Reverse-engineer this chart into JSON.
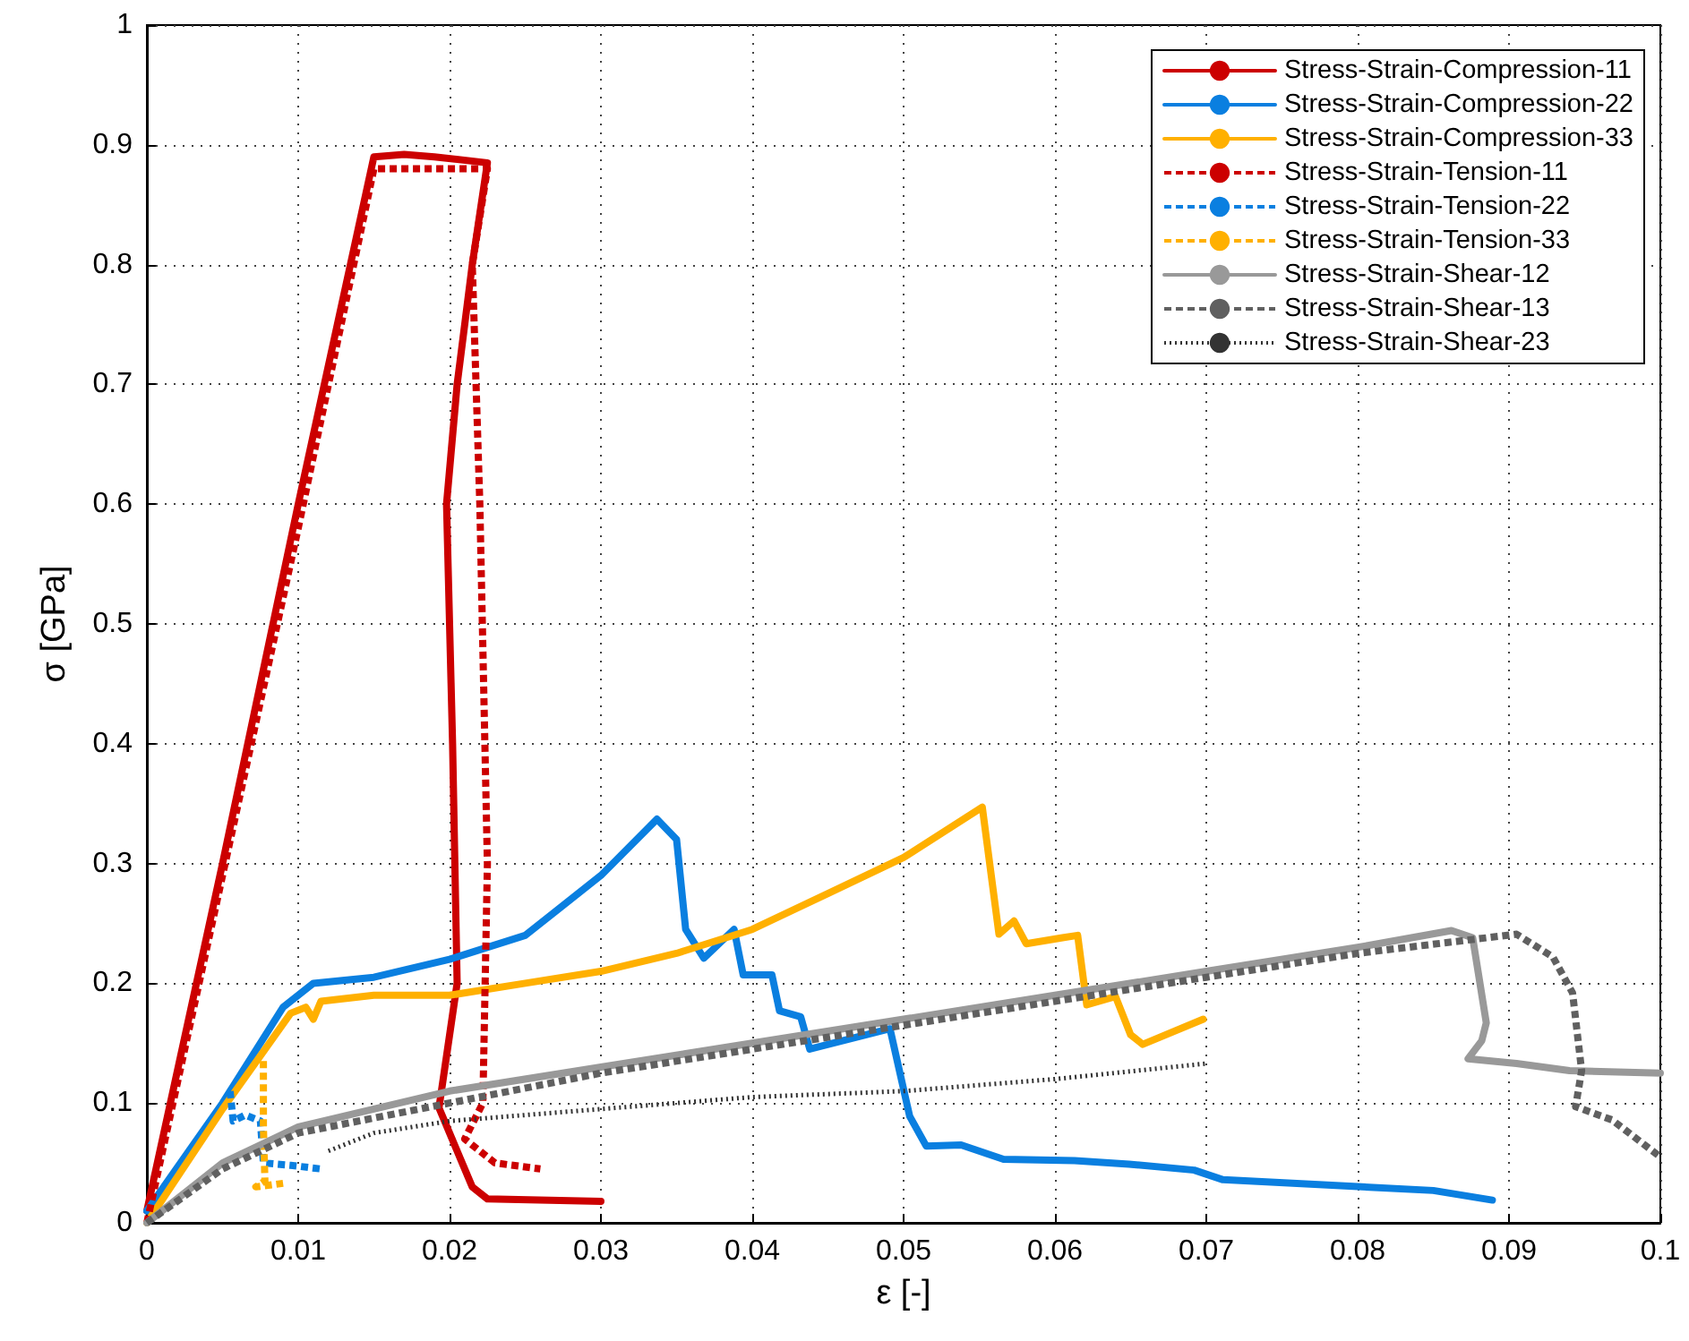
{
  "chart_data": {
    "type": "line",
    "xlabel": "ε [-]",
    "ylabel": "σ [GPa]",
    "xlim": [
      0,
      0.1
    ],
    "xticks": [
      0,
      0.01,
      0.02,
      0.03,
      0.04,
      0.05,
      0.06,
      0.07,
      0.08,
      0.09,
      0.1
    ],
    "ylim": [
      0,
      1
    ],
    "yticks": [
      0,
      0.1,
      0.2,
      0.3,
      0.4,
      0.5,
      0.6,
      0.7,
      0.8,
      0.9,
      1
    ],
    "grid": true,
    "legend": "top right",
    "marker": "none",
    "series": [
      {
        "name": "Stress-Strain-Compression-11",
        "color": "#cc0000",
        "line_style": "solid",
        "x": [
          0,
          0.005,
          0.01,
          0.015,
          0.017,
          0.019,
          0.0225,
          0.0215,
          0.0205,
          0.0198,
          0.0202,
          0.0205,
          0.0193,
          0.0205,
          0.0215,
          0.0225,
          0.03
        ],
        "values": [
          0.01,
          0.3,
          0.6,
          0.89,
          0.892,
          0.89,
          0.885,
          0.8,
          0.7,
          0.6,
          0.4,
          0.2,
          0.096,
          0.06,
          0.03,
          0.02,
          0.018
        ]
      },
      {
        "name": "Stress-Strain-Compression-22",
        "color": "#0a7fe0",
        "line_style": "solid",
        "x": [
          0,
          0.005,
          0.009,
          0.011,
          0.015,
          0.02,
          0.025,
          0.03,
          0.0337,
          0.035,
          0.0356,
          0.0368,
          0.0388,
          0.0394,
          0.0413,
          0.0418,
          0.0432,
          0.0438,
          0.0491,
          0.0504,
          0.0515,
          0.0538,
          0.0566,
          0.0613,
          0.0649,
          0.0692,
          0.0711,
          0.085,
          0.0889
        ],
        "values": [
          0.01,
          0.1,
          0.18,
          0.2,
          0.205,
          0.22,
          0.24,
          0.29,
          0.337,
          0.32,
          0.245,
          0.221,
          0.245,
          0.207,
          0.207,
          0.177,
          0.172,
          0.145,
          0.162,
          0.089,
          0.064,
          0.065,
          0.053,
          0.052,
          0.049,
          0.044,
          0.036,
          0.027,
          0.019
        ]
      },
      {
        "name": "Stress-Strain-Compression-33",
        "color": "#ffb000",
        "line_style": "solid",
        "x": [
          0,
          0.005,
          0.0095,
          0.0105,
          0.011,
          0.0115,
          0.015,
          0.02,
          0.025,
          0.03,
          0.035,
          0.04,
          0.045,
          0.05,
          0.0552,
          0.0563,
          0.0573,
          0.0581,
          0.0605,
          0.0615,
          0.0621,
          0.064,
          0.065,
          0.0658,
          0.0698
        ],
        "values": [
          0,
          0.095,
          0.175,
          0.18,
          0.17,
          0.185,
          0.19,
          0.19,
          0.2,
          0.21,
          0.225,
          0.245,
          0.275,
          0.305,
          0.347,
          0.241,
          0.252,
          0.233,
          0.238,
          0.24,
          0.182,
          0.189,
          0.157,
          0.149,
          0.17
        ]
      },
      {
        "name": "Stress-Strain-Tension-11",
        "color": "#cc0000",
        "line_style": "dashed",
        "x": [
          0,
          0.005,
          0.01,
          0.015,
          0.0225,
          0.0215,
          0.022,
          0.0225,
          0.0222,
          0.021,
          0.023,
          0.026
        ],
        "values": [
          0,
          0.29,
          0.58,
          0.88,
          0.88,
          0.8,
          0.6,
          0.3,
          0.1,
          0.07,
          0.05,
          0.045
        ]
      },
      {
        "name": "Stress-Strain-Tension-22",
        "color": "#0a7fe0",
        "line_style": "dashed",
        "x": [
          0.0055,
          0.0057,
          0.0065,
          0.0075,
          0.0077,
          0.0095,
          0.0115
        ],
        "values": [
          0.11,
          0.085,
          0.09,
          0.085,
          0.05,
          0.048,
          0.045
        ]
      },
      {
        "name": "Stress-Strain-Tension-33",
        "color": "#ffb000",
        "line_style": "dashed",
        "x": [
          0.0077,
          0.0077,
          0.0078,
          0.0072,
          0.009
        ],
        "values": [
          0.135,
          0.08,
          0.035,
          0.03,
          0.033
        ]
      },
      {
        "name": "Stress-Strain-Shear-12",
        "color": "#999999",
        "line_style": "solid",
        "x": [
          0,
          0.005,
          0.01,
          0.02,
          0.03,
          0.04,
          0.05,
          0.06,
          0.07,
          0.08,
          0.0862,
          0.0876,
          0.0885,
          0.0882,
          0.0873,
          0.0905,
          0.094,
          0.1
        ],
        "values": [
          0,
          0.05,
          0.08,
          0.11,
          0.13,
          0.15,
          0.17,
          0.19,
          0.21,
          0.23,
          0.244,
          0.238,
          0.167,
          0.152,
          0.137,
          0.133,
          0.127,
          0.125
        ]
      },
      {
        "name": "Stress-Strain-Shear-13",
        "color": "#606060",
        "line_style": "dashed",
        "x": [
          0,
          0.005,
          0.01,
          0.02,
          0.03,
          0.04,
          0.05,
          0.06,
          0.07,
          0.08,
          0.0905,
          0.0929,
          0.0942,
          0.0948,
          0.0944,
          0.0968,
          0.1
        ],
        "values": [
          0,
          0.045,
          0.075,
          0.1,
          0.125,
          0.145,
          0.165,
          0.185,
          0.205,
          0.225,
          0.241,
          0.222,
          0.192,
          0.127,
          0.097,
          0.086,
          0.055
        ]
      },
      {
        "name": "Stress-Strain-Shear-23",
        "color": "#333333",
        "line_style": "dotted",
        "x": [
          0.012,
          0.015,
          0.02,
          0.03,
          0.04,
          0.05,
          0.06,
          0.07
        ],
        "values": [
          0.06,
          0.075,
          0.085,
          0.095,
          0.105,
          0.11,
          0.12,
          0.133
        ]
      }
    ]
  }
}
